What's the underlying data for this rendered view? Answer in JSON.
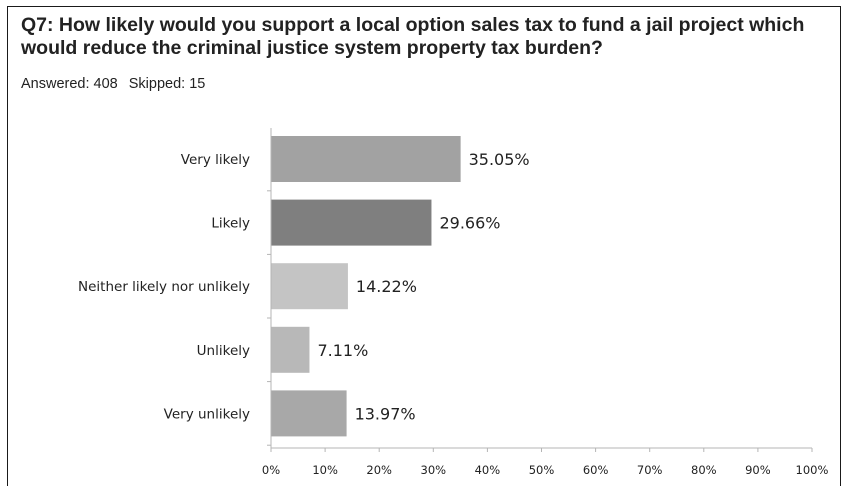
{
  "question": {
    "title": "Q7: How likely would you support a local option sales tax to fund a jail project which would reduce the criminal justice system property tax burden?",
    "answered_label": "Answered: 408",
    "skipped_label": "Skipped: 15"
  },
  "chart_data": {
    "type": "bar",
    "orientation": "horizontal",
    "categories": [
      "Very likely",
      "Likely",
      "Neither likely nor unlikely",
      "Unlikely",
      "Very unlikely"
    ],
    "values": [
      35.05,
      29.66,
      14.22,
      7.11,
      13.97
    ],
    "value_labels": [
      "35.05%",
      "29.66%",
      "14.22%",
      "7.11%",
      "13.97%"
    ],
    "bar_colors": [
      "#a2a2a2",
      "#7f7f7f",
      "#c4c4c4",
      "#b8b8b8",
      "#a8a8a8"
    ],
    "xlim": [
      0,
      100
    ],
    "xticks": [
      0,
      10,
      20,
      30,
      40,
      50,
      60,
      70,
      80,
      90,
      100
    ],
    "xtick_labels": [
      "0%",
      "10%",
      "20%",
      "30%",
      "40%",
      "50%",
      "60%",
      "70%",
      "80%",
      "90%",
      "100%"
    ],
    "grid": false,
    "legend": "none"
  }
}
